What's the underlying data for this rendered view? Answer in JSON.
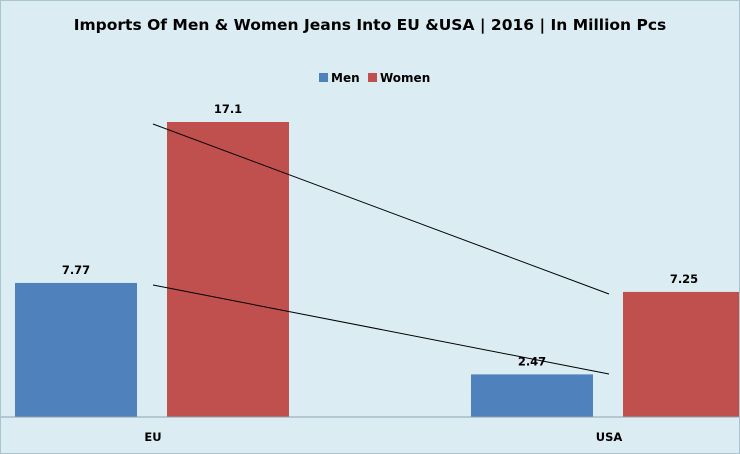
{
  "chart_data": {
    "type": "bar",
    "title": "Imports Of Men & Women Jeans Into EU &USA  | 2016 | In Million Pcs",
    "categories": [
      "EU",
      "USA"
    ],
    "series": [
      {
        "name": "Men",
        "values": [
          7.77,
          2.47
        ],
        "color": "#4f81bd"
      },
      {
        "name": "Women",
        "values": [
          17.1,
          7.25
        ],
        "color": "#c0504d"
      }
    ],
    "data_labels": [
      "7.77",
      "2.47",
      "17.1",
      "7.25"
    ],
    "ylim": [
      0,
      17.1
    ],
    "grid": false,
    "legend_position": "top-center",
    "trend_lines": true
  }
}
